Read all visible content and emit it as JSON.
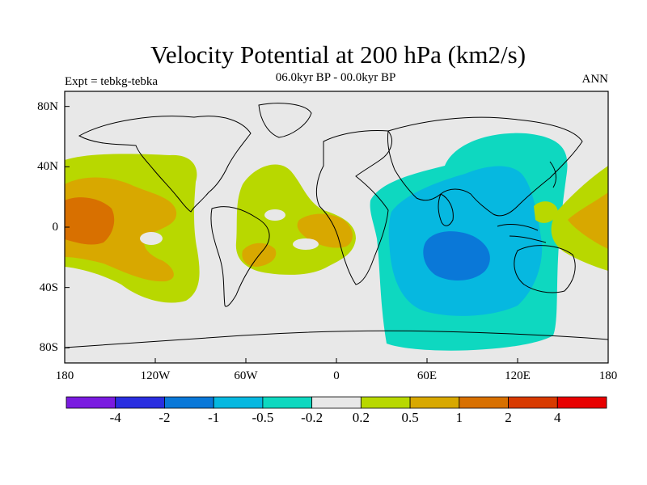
{
  "header": {
    "title": "Velocity Potential at 200 hPa (km2/s)",
    "subtitle": "06.0kyr BP - 00.0kyr BP",
    "experiment": "Expt = tebkg-tebka",
    "period": "ANN"
  },
  "map": {
    "projection": "cylindrical-equidistant",
    "lon_range": [
      -180,
      180
    ],
    "lat_range": [
      -90,
      90
    ],
    "background_color": "#e8e8e8",
    "coastline_color": "#000000",
    "lat_ticks": [
      {
        "value": 80,
        "label": "80N"
      },
      {
        "value": 40,
        "label": "40N"
      },
      {
        "value": 0,
        "label": "0"
      },
      {
        "value": -40,
        "label": "40S"
      },
      {
        "value": -80,
        "label": "80S"
      }
    ],
    "lon_ticks": [
      {
        "value": -180,
        "label": "180"
      },
      {
        "value": -120,
        "label": "120W"
      },
      {
        "value": -60,
        "label": "60W"
      },
      {
        "value": 0,
        "label": "0"
      },
      {
        "value": 60,
        "label": "60E"
      },
      {
        "value": 120,
        "label": "120E"
      },
      {
        "value": 180,
        "label": "180"
      }
    ]
  },
  "colorbar": {
    "colors": [
      "#7a1be0",
      "#2a2ee0",
      "#0a78d8",
      "#06b8e0",
      "#0ed8c0",
      "#e8e8e8",
      "#b8d800",
      "#d8a800",
      "#d87000",
      "#d83a00",
      "#e80000"
    ],
    "labels": [
      "-4",
      "-2",
      "-1",
      "-0.5",
      "-0.2",
      "0.2",
      "0.5",
      "1",
      "2",
      "4"
    ]
  }
}
